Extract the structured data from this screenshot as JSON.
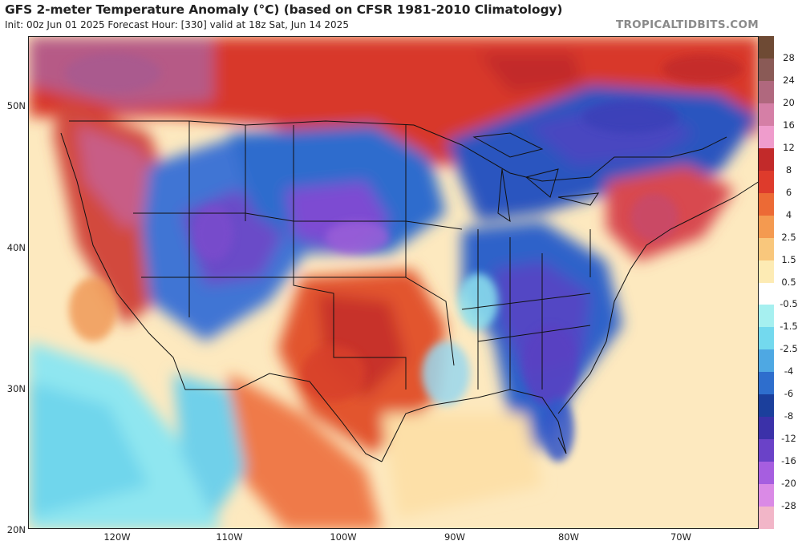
{
  "header": {
    "title": "GFS 2-meter Temperature Anomaly (°C) (based on CFSR 1981-2010 Climatology)",
    "subtitle": "Init: 00z Jun 01 2025   Forecast Hour: [330]   valid at 18z Sat, Jun 14 2025",
    "brand": "TROPICALTIDBITS.COM"
  },
  "map": {
    "lat_labels": [
      "50N",
      "40N",
      "30N",
      "20N"
    ],
    "lon_labels": [
      "120W",
      "110W",
      "100W",
      "90W",
      "80W",
      "70W"
    ],
    "lat_values": [
      50,
      40,
      30,
      20
    ],
    "lon_values": [
      -120,
      -110,
      -100,
      -90,
      -80,
      -70
    ]
  },
  "legend": {
    "labels": [
      "28",
      "24",
      "20",
      "16",
      "12",
      "8",
      "6",
      "4",
      "2.5",
      "1.5",
      "0.5",
      "-0.5",
      "-1.5",
      "-2.5",
      "-4",
      "-6",
      "-8",
      "-12",
      "-16",
      "-20",
      "-28"
    ],
    "colors": [
      "#6e4a34",
      "#8a5a56",
      "#b0687e",
      "#d57fa6",
      "#ef9ccc",
      "#c22a2a",
      "#de3b2c",
      "#ec6a35",
      "#f49a50",
      "#f9c77c",
      "#fdebb4",
      "#ffffff",
      "#a6f0f0",
      "#73d9ee",
      "#4ea8e3",
      "#2e6ecd",
      "#1b3f9c",
      "#3b31a9",
      "#6a42c8",
      "#a65ee0",
      "#da8ae6",
      "#f2b6c8"
    ]
  }
}
